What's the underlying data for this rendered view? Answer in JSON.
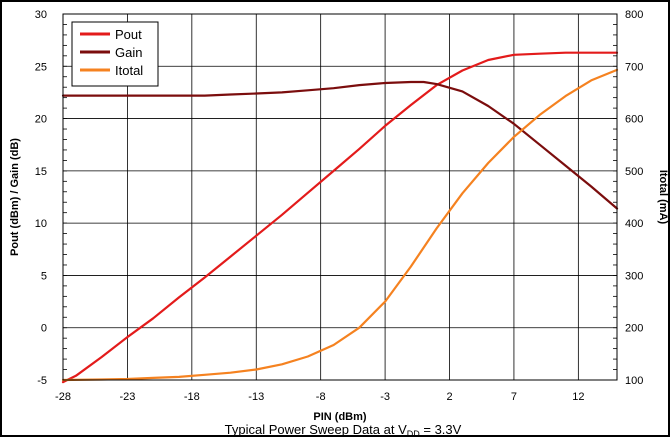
{
  "chart_data": {
    "type": "line",
    "title": "",
    "caption": "Typical Power Sweep Data at V",
    "caption_sub": "DD",
    "caption_tail": " = 3.3V",
    "xlabel": "PIN (dBm)",
    "ylabel_left": "Pout (dBm) / Gain (dB)",
    "ylabel_right": "Itotal (mA)",
    "xlim": [
      -28,
      15
    ],
    "ylim_left": [
      -5,
      30
    ],
    "ylim_right": [
      100,
      800
    ],
    "xticks": [
      -28,
      -23,
      -18,
      -13,
      -8,
      -3,
      2,
      7,
      12
    ],
    "yticks_left": [
      -5,
      0,
      5,
      10,
      15,
      20,
      25,
      30
    ],
    "yticks_right": [
      100,
      200,
      300,
      400,
      500,
      600,
      700,
      800
    ],
    "grid": true,
    "legend_position": "top-left",
    "series": [
      {
        "name": "Pout",
        "axis": "left",
        "color": "#e31b1b",
        "x": [
          -28,
          -27,
          -25,
          -23,
          -21,
          -19,
          -17,
          -15,
          -13,
          -11,
          -9,
          -7,
          -5,
          -3,
          -1,
          1,
          3,
          5,
          7,
          9,
          11,
          13,
          15
        ],
        "y": [
          -5.2,
          -4.6,
          -2.8,
          -0.9,
          0.9,
          2.9,
          4.8,
          6.8,
          8.8,
          10.8,
          12.9,
          15.0,
          17.1,
          19.3,
          21.3,
          23.2,
          24.6,
          25.6,
          26.1,
          26.2,
          26.3,
          26.3,
          26.3
        ]
      },
      {
        "name": "Gain",
        "axis": "left",
        "color": "#7b0d0d",
        "x": [
          -28,
          -25,
          -22,
          -19,
          -17,
          -15,
          -13,
          -11,
          -9,
          -7,
          -5,
          -3,
          -1,
          0,
          1,
          3,
          5,
          7,
          9,
          11,
          13,
          15
        ],
        "y": [
          22.2,
          22.2,
          22.2,
          22.2,
          22.2,
          22.3,
          22.4,
          22.5,
          22.7,
          22.9,
          23.2,
          23.4,
          23.5,
          23.5,
          23.3,
          22.6,
          21.2,
          19.5,
          17.5,
          15.5,
          13.5,
          11.4
        ]
      },
      {
        "name": "Itotal",
        "axis": "right",
        "color": "#f58220",
        "x": [
          -28,
          -25,
          -23,
          -21,
          -19,
          -17,
          -15,
          -13,
          -11,
          -9,
          -7,
          -5,
          -3,
          -1,
          1,
          3,
          5,
          7,
          9,
          11,
          13,
          15
        ],
        "y": [
          100,
          101,
          102,
          104,
          106,
          110,
          114,
          120,
          130,
          145,
          167,
          200,
          250,
          317,
          390,
          457,
          515,
          565,
          607,
          643,
          673,
          693
        ]
      }
    ]
  }
}
